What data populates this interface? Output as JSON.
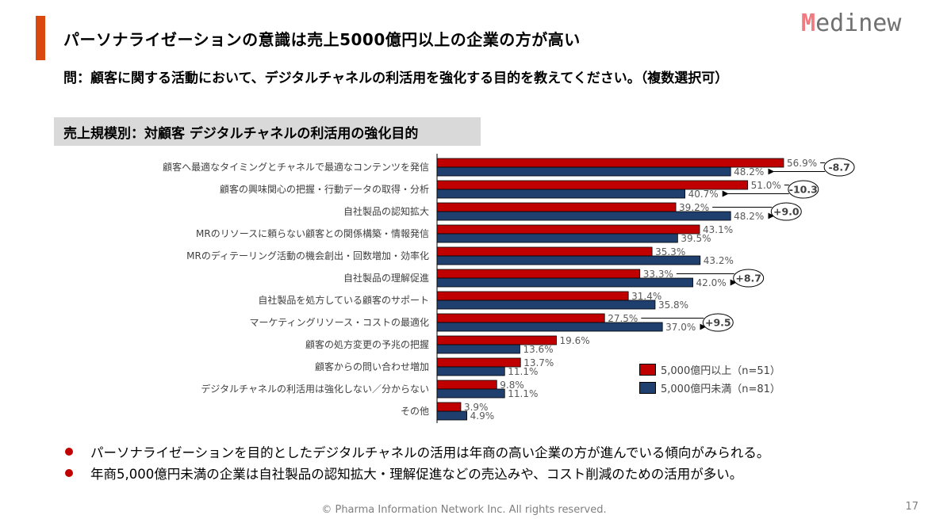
{
  "header": {
    "title": "パーソナライゼーションの意識は売上5000億円以上の企業の方が高い",
    "logo": "Medinew",
    "question": "問：顧客に関する活動において、デジタルチャネルの利活用を強化する目的を教えてください。（複数選択可）",
    "subtitle": "売上規模別：対顧客 デジタルチャネルの利活用の強化目的"
  },
  "chart_data": {
    "type": "bar",
    "orientation": "horizontal",
    "categories": [
      "顧客へ最適なタイミングとチャネルで最適なコンテンツを発信",
      "顧客の興味関心の把握・行動データの取得・分析",
      "自社製品の認知拡大",
      "MRのリソースに頼らない顧客との関係構築・情報発信",
      "MRのディテーリング活動の機会創出・回数増加・効率化",
      "自社製品の理解促進",
      "自社製品を処方している顧客のサポート",
      "マーケティングリソース・コストの最適化",
      "顧客の処方変更の予兆の把握",
      "顧客からの問い合わせ増加",
      "デジタルチャネルの利活用は強化しない／分からない",
      "その他"
    ],
    "series": [
      {
        "name": "5,000億円以上（n=51）",
        "color": "#c00000",
        "values": [
          56.9,
          51.0,
          39.2,
          43.1,
          35.3,
          33.3,
          31.4,
          27.5,
          19.6,
          13.7,
          9.8,
          3.9
        ]
      },
      {
        "name": "5,000億円未満（n=81）",
        "color": "#1f3f6e",
        "values": [
          48.2,
          40.7,
          48.2,
          39.5,
          43.2,
          42.0,
          35.8,
          37.0,
          13.6,
          11.1,
          11.1,
          4.9
        ]
      }
    ],
    "value_format": "%",
    "annotations": [
      {
        "row": 0,
        "text": "-8.7"
      },
      {
        "row": 1,
        "text": "-10.3"
      },
      {
        "row": 2,
        "text": "+9.0"
      },
      {
        "row": 5,
        "text": "+8.7"
      },
      {
        "row": 7,
        "text": "+9.5"
      }
    ],
    "legend_position": "bottom-right",
    "grid": false
  },
  "bullets": [
    "パーソナライゼーションを目的としたデジタルチャネルの活用は年商の高い企業の方が進んでいる傾向がみられる。",
    "年商5,000億円未満の企業は自社製品の認知拡大・理解促進などの売込みや、コスト削減のための活用が多い。"
  ],
  "footer": "© Pharma Information Network Inc.  All rights reserved.",
  "page_number": "17"
}
